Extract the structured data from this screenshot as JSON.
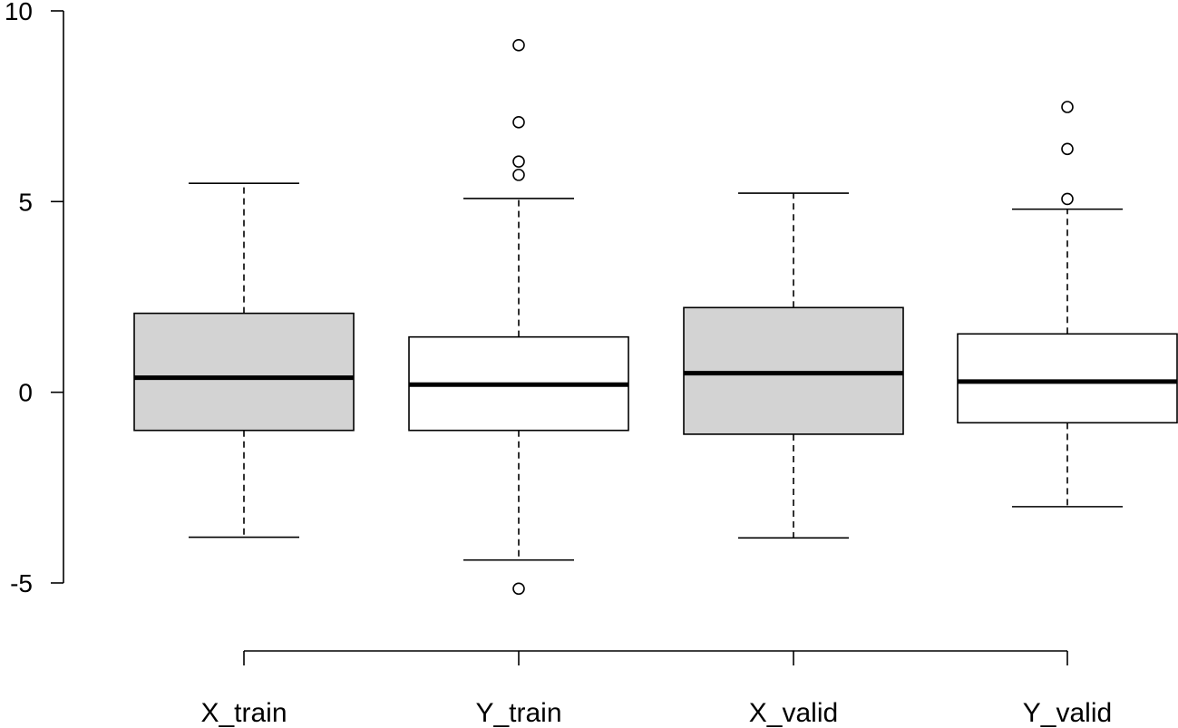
{
  "chart_data": {
    "type": "boxplot",
    "title": "",
    "xlabel": "",
    "ylabel": "",
    "ylim": [
      -5,
      10
    ],
    "yticks": [
      -5,
      0,
      5,
      10
    ],
    "ytick_labels": [
      "-5",
      "0",
      "5",
      "10"
    ],
    "grid": false,
    "categories": [
      "X_train",
      "Y_train",
      "X_valid",
      "Y_valid"
    ],
    "boxes": [
      {
        "name": "X_train",
        "fill": "#d3d3d3",
        "whisker_low": -3.8,
        "q1": -1.0,
        "median": 0.38,
        "q3": 2.07,
        "whisker_high": 5.48,
        "outliers": []
      },
      {
        "name": "Y_train",
        "fill": "#ffffff",
        "whisker_low": -4.4,
        "q1": -1.0,
        "median": 0.2,
        "q3": 1.45,
        "whisker_high": 5.08,
        "outliers": [
          9.1,
          7.08,
          6.05,
          5.7,
          -5.15
        ]
      },
      {
        "name": "X_valid",
        "fill": "#d3d3d3",
        "whisker_low": -3.82,
        "q1": -1.1,
        "median": 0.5,
        "q3": 2.22,
        "whisker_high": 5.22,
        "outliers": []
      },
      {
        "name": "Y_valid",
        "fill": "#ffffff",
        "whisker_low": -3.0,
        "q1": -0.8,
        "median": 0.28,
        "q3": 1.53,
        "whisker_high": 4.8,
        "outliers": [
          7.48,
          6.38,
          5.07
        ]
      }
    ]
  }
}
